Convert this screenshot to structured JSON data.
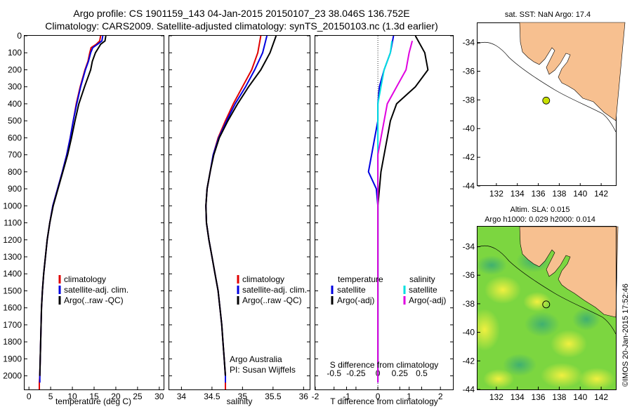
{
  "header": {
    "line1": "Argo profile: CS 1901159_143 04-Jan-2015 20150107_23 38.046S 136.752E",
    "line2": "Climatology: CARS2009. Satellite-adjusted climatology: synTS_20150103.nc (1.3d earlier)"
  },
  "colors": {
    "climatology": "#e00000",
    "satellite": "#0000e0",
    "argo": "#000000",
    "sal_satellite": "#00e0e0",
    "sal_argo": "#e000e0",
    "land": "#f7c090",
    "point": "#c8e000"
  },
  "chart_data": [
    {
      "type": "line",
      "panel": "temperature",
      "xlabel": "temperature (deg C)",
      "ylabel": "",
      "xlim": [
        -1,
        31
      ],
      "ylim": [
        2080,
        0
      ],
      "xticks": [
        "0",
        "5",
        "10",
        "15",
        "20",
        "25",
        "30"
      ],
      "yticks": [
        "0",
        "100",
        "200",
        "300",
        "400",
        "500",
        "600",
        "700",
        "800",
        "900",
        "1000",
        "1100",
        "1200",
        "1300",
        "1400",
        "1500",
        "1600",
        "1700",
        "1800",
        "1900",
        "2000"
      ],
      "legend": [
        "climatology",
        "satellite-adj. clim.",
        "Argo(..raw -QC)"
      ],
      "series": [
        {
          "name": "climatology",
          "color_key": "climatology",
          "points": [
            [
              16.5,
              0
            ],
            [
              16.3,
              30
            ],
            [
              15.5,
              50
            ],
            [
              14.3,
              70
            ],
            [
              14,
              100
            ],
            [
              13.6,
              150
            ],
            [
              12.9,
              200
            ],
            [
              11.8,
              300
            ],
            [
              10.9,
              400
            ],
            [
              10.2,
              500
            ],
            [
              9.5,
              600
            ],
            [
              8.7,
              700
            ],
            [
              7.7,
              800
            ],
            [
              6.6,
              900
            ],
            [
              5.5,
              1000
            ],
            [
              4.8,
              1100
            ],
            [
              4.2,
              1200
            ],
            [
              3.8,
              1300
            ],
            [
              3.4,
              1400
            ],
            [
              3.1,
              1500
            ],
            [
              2.9,
              1600
            ],
            [
              2.8,
              1700
            ],
            [
              2.7,
              1800
            ],
            [
              2.6,
              1900
            ],
            [
              2.5,
              2000
            ],
            [
              2.4,
              2040
            ],
            [
              2.4,
              2080
            ]
          ]
        },
        {
          "name": "satellite-adj. clim.",
          "color_key": "satellite",
          "points": [
            [
              17,
              0
            ],
            [
              16.8,
              30
            ],
            [
              15.8,
              50
            ],
            [
              14.7,
              70
            ],
            [
              14.2,
              100
            ],
            [
              13.7,
              150
            ],
            [
              13,
              200
            ],
            [
              11.9,
              300
            ],
            [
              11,
              400
            ],
            [
              10.2,
              500
            ],
            [
              9.5,
              600
            ],
            [
              8.7,
              700
            ],
            [
              7.7,
              800
            ],
            [
              6.6,
              900
            ],
            [
              5.5,
              1000
            ],
            [
              4.8,
              1100
            ],
            [
              4.2,
              1200
            ],
            [
              3.8,
              1300
            ],
            [
              3.4,
              1400
            ],
            [
              3.1,
              1500
            ],
            [
              2.9,
              1600
            ],
            [
              2.8,
              1700
            ],
            [
              2.7,
              1800
            ],
            [
              2.6,
              1900
            ],
            [
              2.5,
              2000
            ],
            [
              2.5,
              2040
            ]
          ]
        },
        {
          "name": "Argo(..raw -QC)",
          "color_key": "argo",
          "points": [
            [
              17.7,
              0
            ],
            [
              17.5,
              30
            ],
            [
              16.5,
              50
            ],
            [
              15.8,
              80
            ],
            [
              15.3,
              100
            ],
            [
              14.6,
              150
            ],
            [
              14.2,
              200
            ],
            [
              12.8,
              300
            ],
            [
              11.5,
              400
            ],
            [
              10.6,
              500
            ],
            [
              9.8,
              600
            ],
            [
              8.9,
              700
            ],
            [
              7.8,
              800
            ],
            [
              6.7,
              900
            ],
            [
              5.6,
              1000
            ],
            [
              4.8,
              1100
            ],
            [
              4.2,
              1200
            ],
            [
              3.8,
              1300
            ],
            [
              3.4,
              1400
            ],
            [
              3.1,
              1500
            ],
            [
              2.9,
              1600
            ],
            [
              2.8,
              1700
            ],
            [
              2.7,
              1800
            ],
            [
              2.6,
              1900
            ],
            [
              2.5,
              2000
            ]
          ]
        }
      ]
    },
    {
      "type": "line",
      "panel": "salinity",
      "xlabel": "salinity",
      "xlim": [
        33.8,
        36.1
      ],
      "ylim": [
        2080,
        0
      ],
      "xticks": [
        "34",
        "34.5",
        "35",
        "35.5",
        "36"
      ],
      "legend": [
        "climatology",
        "satellite-adj. clim.",
        "Argo(..raw -QC)"
      ],
      "annotation": [
        "Argo Australia",
        "PI: Susan Wijffels"
      ],
      "series": [
        {
          "name": "climatology",
          "color_key": "climatology",
          "points": [
            [
              35.3,
              0
            ],
            [
              35.25,
              100
            ],
            [
              35.15,
              200
            ],
            [
              35.0,
              300
            ],
            [
              34.85,
              400
            ],
            [
              34.72,
              500
            ],
            [
              34.6,
              600
            ],
            [
              34.52,
              700
            ],
            [
              34.47,
              800
            ],
            [
              34.42,
              900
            ],
            [
              34.4,
              1000
            ],
            [
              34.41,
              1100
            ],
            [
              34.45,
              1200
            ],
            [
              34.5,
              1300
            ],
            [
              34.55,
              1400
            ],
            [
              34.6,
              1500
            ],
            [
              34.63,
              1600
            ],
            [
              34.66,
              1700
            ],
            [
              34.68,
              1800
            ],
            [
              34.7,
              1900
            ],
            [
              34.72,
              2000
            ],
            [
              34.72,
              2080
            ]
          ]
        },
        {
          "name": "satellite-adj. clim.",
          "color_key": "satellite",
          "points": [
            [
              35.4,
              0
            ],
            [
              35.33,
              100
            ],
            [
              35.2,
              200
            ],
            [
              35.05,
              300
            ],
            [
              34.88,
              400
            ],
            [
              34.74,
              500
            ],
            [
              34.61,
              600
            ],
            [
              34.52,
              700
            ],
            [
              34.47,
              800
            ],
            [
              34.42,
              900
            ],
            [
              34.4,
              1000
            ],
            [
              34.41,
              1100
            ],
            [
              34.45,
              1200
            ],
            [
              34.5,
              1300
            ],
            [
              34.55,
              1400
            ],
            [
              34.6,
              1500
            ],
            [
              34.63,
              1600
            ],
            [
              34.66,
              1700
            ],
            [
              34.68,
              1800
            ],
            [
              34.7,
              1900
            ],
            [
              34.72,
              2000
            ],
            [
              34.72,
              2040
            ]
          ]
        },
        {
          "name": "Argo(..raw -QC)",
          "color_key": "argo",
          "points": [
            [
              35.55,
              0
            ],
            [
              35.45,
              100
            ],
            [
              35.3,
              200
            ],
            [
              35.1,
              300
            ],
            [
              34.92,
              400
            ],
            [
              34.76,
              500
            ],
            [
              34.62,
              600
            ],
            [
              34.53,
              700
            ],
            [
              34.47,
              800
            ],
            [
              34.42,
              900
            ],
            [
              34.4,
              1000
            ],
            [
              34.41,
              1100
            ],
            [
              34.45,
              1200
            ],
            [
              34.5,
              1300
            ],
            [
              34.55,
              1400
            ],
            [
              34.6,
              1500
            ],
            [
              34.63,
              1600
            ],
            [
              34.66,
              1700
            ],
            [
              34.68,
              1800
            ],
            [
              34.7,
              1900
            ],
            [
              34.72,
              2000
            ]
          ]
        }
      ]
    },
    {
      "type": "line",
      "panel": "difference",
      "xlabel": "T difference from climatology",
      "top_xlabel": "S difference from climatology",
      "xlim": [
        -2,
        2.4
      ],
      "ylim": [
        2080,
        0
      ],
      "xticks": [
        "-2",
        "-1",
        "0",
        "1",
        "2"
      ],
      "top_xticks": [
        "-0.5",
        "-0.25",
        "0",
        "0.25",
        "0.5"
      ],
      "legend_temperature": [
        "temperature",
        "satellite",
        "Argo(-adj)"
      ],
      "legend_salinity": [
        "salinity",
        "satellite",
        "Argo(-adj)"
      ],
      "series": [
        {
          "name": "satellite",
          "group": "temperature",
          "color_key": "satellite",
          "points": [
            [
              0.5,
              0
            ],
            [
              0.4,
              100
            ],
            [
              0.2,
              200
            ],
            [
              0.05,
              300
            ],
            [
              0,
              400
            ],
            [
              0,
              500
            ],
            [
              -0.1,
              600
            ],
            [
              -0.2,
              700
            ],
            [
              -0.3,
              800
            ],
            [
              -0.05,
              900
            ],
            [
              0,
              1000
            ],
            [
              0,
              2040
            ]
          ]
        },
        {
          "name": "Argo(-adj)",
          "group": "temperature",
          "color_key": "argo",
          "points": [
            [
              1.2,
              0
            ],
            [
              1.5,
              100
            ],
            [
              1.6,
              200
            ],
            [
              1.2,
              300
            ],
            [
              0.6,
              400
            ],
            [
              0.4,
              500
            ],
            [
              0.3,
              600
            ],
            [
              0.2,
              700
            ],
            [
              0.1,
              800
            ],
            [
              0.05,
              900
            ],
            [
              0,
              1000
            ],
            [
              0,
              2000
            ]
          ]
        },
        {
          "name": "satellite",
          "group": "salinity",
          "color_key": "sal_satellite",
          "points": [
            [
              0.45,
              30
            ],
            [
              0.4,
              100
            ],
            [
              0.2,
              200
            ],
            [
              0.1,
              300
            ],
            [
              0,
              400
            ],
            [
              0,
              2040
            ]
          ]
        },
        {
          "name": "Argo(-adj)",
          "group": "salinity",
          "color_key": "sal_argo",
          "points": [
            [
              1.1,
              30
            ],
            [
              1.0,
              100
            ],
            [
              0.9,
              200
            ],
            [
              0.6,
              300
            ],
            [
              0.3,
              400
            ],
            [
              0.2,
              500
            ],
            [
              0.1,
              600
            ],
            [
              0,
              700
            ],
            [
              0,
              2040
            ]
          ]
        }
      ]
    }
  ],
  "map_sst": {
    "title": "sat. SST: NaN Argo: 17.4",
    "xlim": [
      130.2,
      143.4
    ],
    "ylim": [
      -44,
      -32.6
    ],
    "xticks": [
      "132",
      "134",
      "136",
      "138",
      "140",
      "142"
    ],
    "yticks": [
      "-34",
      "-36",
      "-38",
      "-40",
      "-42",
      "-44"
    ],
    "argo_position": {
      "lon": 136.752,
      "lat": -38.046
    }
  },
  "map_sla": {
    "title1": "Altim. SLA: 0.015",
    "title2": "Argo h1000: 0.029 h2000: 0.014",
    "xlim": [
      130.2,
      143.4
    ],
    "ylim": [
      -44,
      -32.6
    ],
    "xticks": [
      "132",
      "134",
      "136",
      "138",
      "140",
      "142"
    ],
    "yticks": [
      "-34",
      "-36",
      "-38",
      "-40",
      "-42",
      "-44"
    ],
    "argo_position": {
      "lon": 136.752,
      "lat": -38.046
    }
  },
  "credit": "©IMOS 20-Jan-2015 17:52:46"
}
